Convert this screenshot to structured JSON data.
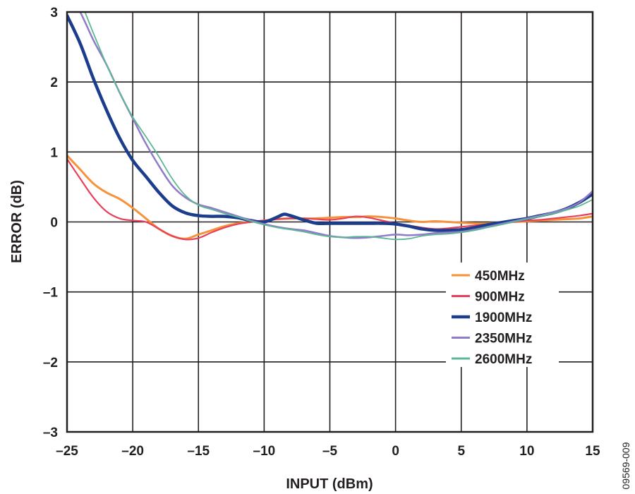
{
  "chart_data": {
    "type": "line",
    "xlabel": "INPUT (dBm)",
    "ylabel": "ERROR (dB)",
    "xlim": [
      -25,
      15
    ],
    "ylim": [
      -3,
      3
    ],
    "x_ticks": [
      -25,
      -20,
      -15,
      -10,
      -5,
      0,
      5,
      10,
      15
    ],
    "y_ticks": [
      3,
      2,
      1,
      0,
      -1,
      -2,
      -3
    ],
    "x_tick_labels": [
      "–25",
      "–20",
      "–15",
      "–10",
      "–5",
      "0",
      "5",
      "10",
      "15"
    ],
    "y_tick_labels": [
      "3",
      "2",
      "1",
      "0",
      "–1",
      "–2",
      "–3"
    ],
    "grid": true,
    "legend_position": "bottom-right",
    "figure_id": "09569-009",
    "series": [
      {
        "name": "450MHz",
        "color": "#f7923a",
        "width": 3,
        "points": [
          [
            -25,
            0.95
          ],
          [
            -24,
            0.75
          ],
          [
            -23,
            0.55
          ],
          [
            -22,
            0.42
          ],
          [
            -21,
            0.33
          ],
          [
            -20,
            0.2
          ],
          [
            -19,
            0.05
          ],
          [
            -18,
            -0.1
          ],
          [
            -17,
            -0.2
          ],
          [
            -16,
            -0.24
          ],
          [
            -15,
            -0.18
          ],
          [
            -14,
            -0.12
          ],
          [
            -13,
            -0.06
          ],
          [
            -12,
            -0.02
          ],
          [
            -11,
            0.0
          ],
          [
            -10,
            0.02
          ],
          [
            -9,
            0.04
          ],
          [
            -8,
            0.05
          ],
          [
            -7,
            0.05
          ],
          [
            -6,
            0.05
          ],
          [
            -5,
            0.06
          ],
          [
            -4,
            0.07
          ],
          [
            -3,
            0.07
          ],
          [
            -2,
            0.08
          ],
          [
            -1,
            0.07
          ],
          [
            0,
            0.05
          ],
          [
            1,
            0.02
          ],
          [
            2,
            0.0
          ],
          [
            3,
            0.01
          ],
          [
            4,
            0.0
          ],
          [
            5,
            -0.01
          ],
          [
            6,
            -0.02
          ],
          [
            7,
            -0.02
          ],
          [
            8,
            -0.01
          ],
          [
            9,
            0.0
          ],
          [
            10,
            0.01
          ],
          [
            11,
            0.02
          ],
          [
            12,
            0.03
          ],
          [
            13,
            0.04
          ],
          [
            14,
            0.05
          ],
          [
            15,
            0.08
          ]
        ]
      },
      {
        "name": "900MHz",
        "color": "#e8405a",
        "width": 2.2,
        "points": [
          [
            -25,
            0.9
          ],
          [
            -24,
            0.62
          ],
          [
            -23,
            0.35
          ],
          [
            -22,
            0.15
          ],
          [
            -21,
            0.05
          ],
          [
            -20,
            0.02
          ],
          [
            -19,
            0.0
          ],
          [
            -18,
            -0.1
          ],
          [
            -17,
            -0.2
          ],
          [
            -16,
            -0.25
          ],
          [
            -15,
            -0.23
          ],
          [
            -14,
            -0.15
          ],
          [
            -13,
            -0.08
          ],
          [
            -12,
            -0.03
          ],
          [
            -11,
            0.0
          ],
          [
            -10,
            0.02
          ],
          [
            -9,
            0.04
          ],
          [
            -8,
            0.05
          ],
          [
            -7,
            0.05
          ],
          [
            -6,
            0.04
          ],
          [
            -5,
            0.03
          ],
          [
            -4,
            0.05
          ],
          [
            -3,
            0.08
          ],
          [
            -2,
            0.06
          ],
          [
            -1,
            0.02
          ],
          [
            0,
            -0.02
          ],
          [
            1,
            -0.05
          ],
          [
            2,
            -0.08
          ],
          [
            3,
            -0.1
          ],
          [
            4,
            -0.09
          ],
          [
            5,
            -0.07
          ],
          [
            6,
            -0.05
          ],
          [
            7,
            -0.03
          ],
          [
            8,
            -0.01
          ],
          [
            9,
            0.0
          ],
          [
            10,
            0.02
          ],
          [
            11,
            0.03
          ],
          [
            12,
            0.05
          ],
          [
            13,
            0.07
          ],
          [
            14,
            0.09
          ],
          [
            15,
            0.12
          ]
        ]
      },
      {
        "name": "1900MHz",
        "color": "#1b3d8c",
        "width": 4.5,
        "points": [
          [
            -25,
            2.95
          ],
          [
            -24,
            2.55
          ],
          [
            -23,
            2.05
          ],
          [
            -22,
            1.6
          ],
          [
            -21,
            1.2
          ],
          [
            -20,
            0.88
          ],
          [
            -19,
            0.65
          ],
          [
            -18,
            0.42
          ],
          [
            -17,
            0.23
          ],
          [
            -16,
            0.13
          ],
          [
            -15,
            0.09
          ],
          [
            -14,
            0.08
          ],
          [
            -13,
            0.08
          ],
          [
            -12,
            0.06
          ],
          [
            -11,
            0.02
          ],
          [
            -10,
            0.0
          ],
          [
            -9,
            0.07
          ],
          [
            -8.5,
            0.11
          ],
          [
            -8,
            0.09
          ],
          [
            -7,
            0.03
          ],
          [
            -6,
            -0.02
          ],
          [
            -5,
            -0.02
          ],
          [
            -4,
            -0.02
          ],
          [
            -3,
            -0.02
          ],
          [
            -2,
            -0.02
          ],
          [
            -1,
            -0.02
          ],
          [
            0,
            -0.03
          ],
          [
            1,
            -0.06
          ],
          [
            2,
            -0.1
          ],
          [
            3,
            -0.12
          ],
          [
            4,
            -0.12
          ],
          [
            5,
            -0.11
          ],
          [
            6,
            -0.08
          ],
          [
            7,
            -0.04
          ],
          [
            8,
            -0.01
          ],
          [
            9,
            0.02
          ],
          [
            10,
            0.05
          ],
          [
            11,
            0.09
          ],
          [
            12,
            0.13
          ],
          [
            13,
            0.19
          ],
          [
            14,
            0.28
          ],
          [
            15,
            0.4
          ]
        ]
      },
      {
        "name": "2350MHz",
        "color": "#8f7cc8",
        "width": 2.5,
        "points": [
          [
            -25,
            3.3
          ],
          [
            -24,
            3.0
          ],
          [
            -23,
            2.6
          ],
          [
            -22,
            2.25
          ],
          [
            -21,
            1.85
          ],
          [
            -20,
            1.48
          ],
          [
            -19,
            1.12
          ],
          [
            -18,
            0.8
          ],
          [
            -17,
            0.52
          ],
          [
            -16,
            0.35
          ],
          [
            -15,
            0.25
          ],
          [
            -14,
            0.2
          ],
          [
            -13,
            0.14
          ],
          [
            -12,
            0.08
          ],
          [
            -11,
            0.02
          ],
          [
            -10,
            -0.03
          ],
          [
            -9,
            -0.07
          ],
          [
            -8,
            -0.1
          ],
          [
            -7,
            -0.12
          ],
          [
            -6,
            -0.16
          ],
          [
            -5,
            -0.2
          ],
          [
            -4,
            -0.22
          ],
          [
            -3,
            -0.23
          ],
          [
            -2,
            -0.22
          ],
          [
            -1,
            -0.2
          ],
          [
            0,
            -0.18
          ],
          [
            1,
            -0.19
          ],
          [
            2,
            -0.18
          ],
          [
            3,
            -0.16
          ],
          [
            4,
            -0.15
          ],
          [
            5,
            -0.14
          ],
          [
            6,
            -0.11
          ],
          [
            7,
            -0.07
          ],
          [
            8,
            -0.03
          ],
          [
            9,
            0.01
          ],
          [
            10,
            0.05
          ],
          [
            11,
            0.09
          ],
          [
            12,
            0.14
          ],
          [
            13,
            0.19
          ],
          [
            14,
            0.28
          ],
          [
            15,
            0.44
          ]
        ]
      },
      {
        "name": "2600MHz",
        "color": "#5cb894",
        "width": 1.8,
        "points": [
          [
            -25,
            3.4
          ],
          [
            -24,
            3.15
          ],
          [
            -23,
            2.7
          ],
          [
            -22,
            2.25
          ],
          [
            -21,
            1.85
          ],
          [
            -20,
            1.5
          ],
          [
            -19,
            1.22
          ],
          [
            -18,
            0.93
          ],
          [
            -17,
            0.62
          ],
          [
            -16,
            0.38
          ],
          [
            -15,
            0.24
          ],
          [
            -14,
            0.18
          ],
          [
            -13,
            0.12
          ],
          [
            -12,
            0.07
          ],
          [
            -11,
            0.01
          ],
          [
            -10,
            -0.04
          ],
          [
            -9,
            -0.08
          ],
          [
            -8,
            -0.11
          ],
          [
            -7,
            -0.14
          ],
          [
            -6,
            -0.18
          ],
          [
            -5,
            -0.21
          ],
          [
            -4,
            -0.22
          ],
          [
            -3,
            -0.21
          ],
          [
            -2,
            -0.21
          ],
          [
            -1,
            -0.23
          ],
          [
            0,
            -0.25
          ],
          [
            1,
            -0.24
          ],
          [
            2,
            -0.2
          ],
          [
            3,
            -0.18
          ],
          [
            4,
            -0.17
          ],
          [
            5,
            -0.15
          ],
          [
            6,
            -0.12
          ],
          [
            7,
            -0.08
          ],
          [
            8,
            -0.04
          ],
          [
            9,
            0.0
          ],
          [
            10,
            0.04
          ],
          [
            11,
            0.08
          ],
          [
            12,
            0.12
          ],
          [
            13,
            0.17
          ],
          [
            14,
            0.23
          ],
          [
            15,
            0.32
          ]
        ]
      }
    ]
  }
}
